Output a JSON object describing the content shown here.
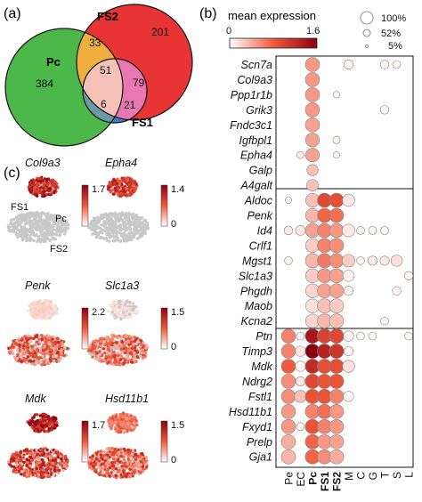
{
  "panels": {
    "a": "(a)",
    "b": "(b)",
    "c": "(c)"
  },
  "colors": {
    "green": "#4cb849",
    "red": "#e83434",
    "blue": "#3f7ec2",
    "orange": "#f0b040",
    "pink": "#e878b2",
    "peach": "#f4c2b6",
    "teal": "#6a9aa6"
  },
  "chart_data": [
    {
      "type": "venn",
      "sets": [
        {
          "name": "Pc",
          "only": "384"
        },
        {
          "name": "FS2",
          "only": "201"
        },
        {
          "name": "FS1",
          "only": "21"
        }
      ],
      "intersections": {
        "Pc_FS2": "33",
        "FS2_FS1": "79",
        "Pc_FS1": "6",
        "all": "51"
      }
    },
    {
      "type": "dotplot",
      "size_legend": {
        "title": "mean expression",
        "color_min": "0",
        "color_max": "1.6",
        "sizes": [
          "100%",
          "52%",
          "5%"
        ]
      },
      "columns": [
        "Pe",
        "EC",
        "Pc",
        "FS1",
        "FS2",
        "M",
        "C",
        "G",
        "T",
        "S",
        "L"
      ],
      "bold_columns": [
        "Pc",
        "FS1",
        "FS2"
      ],
      "genes": [
        "Scn7a",
        "Col9a3",
        "Ppp1r1b",
        "Grik3",
        "Fndc3c1",
        "Igfbpl1",
        "Epha4",
        "Galp",
        "A4galt",
        "Aldoc",
        "Penk",
        "Id4",
        "Crlf1",
        "Mgst1",
        "Slc1a3",
        "Phgdh",
        "Maob",
        "Kcna2",
        "Ptn",
        "Timp3",
        "Mdk",
        "Ndrg2",
        "Fstl1",
        "Hsd11b1",
        "Fxyd1",
        "Prelp",
        "Gja1"
      ],
      "dots": [
        [
          0,
          2,
          0.95,
          0.5
        ],
        [
          0,
          5,
          0.4,
          0.05
        ],
        [
          0,
          8,
          0.35,
          0.05
        ],
        [
          0,
          9,
          0.3,
          0.05
        ],
        [
          1,
          2,
          0.95,
          0.5
        ],
        [
          2,
          2,
          0.95,
          0.5
        ],
        [
          2,
          4,
          0.2,
          0.05
        ],
        [
          3,
          2,
          0.95,
          0.5
        ],
        [
          3,
          8,
          0.35,
          0.05
        ],
        [
          4,
          2,
          0.95,
          0.45
        ],
        [
          5,
          2,
          0.9,
          0.45
        ],
        [
          5,
          4,
          0.25,
          0.05
        ],
        [
          6,
          1,
          0.25,
          0.1
        ],
        [
          6,
          2,
          0.9,
          0.45
        ],
        [
          6,
          4,
          0.2,
          0.05
        ],
        [
          7,
          2,
          0.6,
          0.3
        ],
        [
          8,
          2,
          0.65,
          0.3
        ],
        [
          9,
          0,
          0.2,
          0.05
        ],
        [
          9,
          2,
          0.9,
          0.3
        ],
        [
          9,
          3,
          0.95,
          0.95
        ],
        [
          9,
          4,
          0.95,
          0.9
        ],
        [
          9,
          5,
          0.7,
          0.1
        ],
        [
          10,
          2,
          0.9,
          0.35
        ],
        [
          10,
          3,
          0.95,
          0.75
        ],
        [
          10,
          4,
          0.95,
          0.7
        ],
        [
          11,
          0,
          0.35,
          0.1
        ],
        [
          11,
          1,
          0.45,
          0.1
        ],
        [
          11,
          2,
          0.95,
          0.45
        ],
        [
          11,
          3,
          0.95,
          0.6
        ],
        [
          11,
          4,
          0.95,
          0.5
        ],
        [
          11,
          5,
          0.75,
          0.1
        ],
        [
          11,
          6,
          0.3,
          0.05
        ],
        [
          11,
          7,
          0.3,
          0.05
        ],
        [
          11,
          8,
          0.3,
          0.05
        ],
        [
          12,
          2,
          0.9,
          0.25
        ],
        [
          12,
          3,
          0.95,
          0.6
        ],
        [
          12,
          4,
          0.95,
          0.55
        ],
        [
          13,
          0,
          0.3,
          0.05
        ],
        [
          13,
          2,
          0.95,
          0.35
        ],
        [
          13,
          3,
          0.95,
          0.65
        ],
        [
          13,
          4,
          0.95,
          0.55
        ],
        [
          13,
          5,
          0.75,
          0.25
        ],
        [
          13,
          6,
          0.3,
          0.05
        ],
        [
          13,
          7,
          0.4,
          0.1
        ],
        [
          13,
          8,
          0.4,
          0.1
        ],
        [
          13,
          9,
          0.6,
          0.15
        ],
        [
          14,
          2,
          0.9,
          0.25
        ],
        [
          14,
          3,
          0.95,
          0.5
        ],
        [
          14,
          4,
          0.95,
          0.45
        ],
        [
          14,
          5,
          0.6,
          0.05
        ],
        [
          14,
          10,
          0.35,
          0.05
        ],
        [
          15,
          2,
          0.9,
          0.2
        ],
        [
          15,
          3,
          0.95,
          0.45
        ],
        [
          15,
          4,
          0.95,
          0.45
        ],
        [
          15,
          5,
          0.4,
          0.05
        ],
        [
          15,
          9,
          0.35,
          0.05
        ],
        [
          16,
          2,
          0.9,
          0.15
        ],
        [
          16,
          3,
          0.95,
          0.3
        ],
        [
          16,
          4,
          0.95,
          0.25
        ],
        [
          17,
          2,
          0.9,
          0.2
        ],
        [
          17,
          3,
          0.95,
          0.35
        ],
        [
          17,
          4,
          0.95,
          0.3
        ],
        [
          17,
          8,
          0.3,
          0.05
        ],
        [
          18,
          0,
          0.95,
          0.6
        ],
        [
          18,
          1,
          0.3,
          0.05
        ],
        [
          18,
          2,
          0.98,
          1.4
        ],
        [
          18,
          3,
          0.98,
          1.0
        ],
        [
          18,
          4,
          0.98,
          0.95
        ],
        [
          18,
          5,
          0.5,
          0.05
        ],
        [
          18,
          6,
          0.3,
          0.05
        ],
        [
          18,
          7,
          0.3,
          0.05
        ],
        [
          18,
          10,
          0.3,
          0.05
        ],
        [
          19,
          0,
          0.95,
          0.6
        ],
        [
          19,
          1,
          0.5,
          0.1
        ],
        [
          19,
          2,
          0.98,
          1.6
        ],
        [
          19,
          3,
          0.98,
          1.3
        ],
        [
          19,
          4,
          0.98,
          1.1
        ],
        [
          19,
          5,
          0.4,
          0.05
        ],
        [
          20,
          0,
          0.95,
          0.8
        ],
        [
          20,
          1,
          0.5,
          0.05
        ],
        [
          20,
          2,
          0.98,
          1.2
        ],
        [
          20,
          3,
          0.98,
          0.9
        ],
        [
          20,
          4,
          0.98,
          0.9
        ],
        [
          20,
          5,
          0.7,
          0.15
        ],
        [
          21,
          0,
          0.95,
          0.55
        ],
        [
          21,
          1,
          0.4,
          0.1
        ],
        [
          21,
          2,
          0.98,
          0.95
        ],
        [
          21,
          3,
          0.98,
          0.85
        ],
        [
          21,
          4,
          0.98,
          0.85
        ],
        [
          22,
          0,
          0.95,
          0.55
        ],
        [
          22,
          1,
          0.7,
          0.3
        ],
        [
          22,
          2,
          0.98,
          0.85
        ],
        [
          22,
          3,
          0.98,
          0.85
        ],
        [
          22,
          4,
          0.95,
          0.6
        ],
        [
          22,
          5,
          0.5,
          0.05
        ],
        [
          23,
          0,
          0.95,
          0.5
        ],
        [
          23,
          2,
          0.98,
          0.6
        ],
        [
          23,
          3,
          0.98,
          0.7
        ],
        [
          23,
          4,
          0.95,
          0.5
        ],
        [
          24,
          0,
          0.95,
          0.5
        ],
        [
          24,
          1,
          0.3,
          0.05
        ],
        [
          24,
          2,
          0.98,
          0.85
        ],
        [
          24,
          3,
          0.95,
          0.6
        ],
        [
          24,
          4,
          0.95,
          0.5
        ],
        [
          25,
          0,
          0.95,
          0.4
        ],
        [
          25,
          2,
          0.98,
          0.75
        ],
        [
          25,
          3,
          0.95,
          0.5
        ],
        [
          25,
          4,
          0.95,
          0.45
        ],
        [
          26,
          0,
          0.95,
          0.35
        ],
        [
          26,
          2,
          0.98,
          0.75
        ],
        [
          26,
          3,
          0.95,
          0.55
        ],
        [
          26,
          4,
          0.95,
          0.4
        ]
      ]
    },
    {
      "type": "umap_feature_grid",
      "cluster_labels": [
        "Pc",
        "FS1",
        "FS2"
      ],
      "plots": [
        {
          "gene": "Col9a3",
          "max": "1.7",
          "min": "0"
        },
        {
          "gene": "Epha4",
          "max": "1.4",
          "min": "0"
        },
        {
          "gene": "Penk",
          "max": "2.2",
          "min": "0"
        },
        {
          "gene": "Slc1a3",
          "max": "1.5",
          "min": "0"
        },
        {
          "gene": "Mdk",
          "max": "1.7",
          "min": "0"
        },
        {
          "gene": "Hsd11b1",
          "max": "1.5",
          "min": "0"
        }
      ]
    }
  ]
}
